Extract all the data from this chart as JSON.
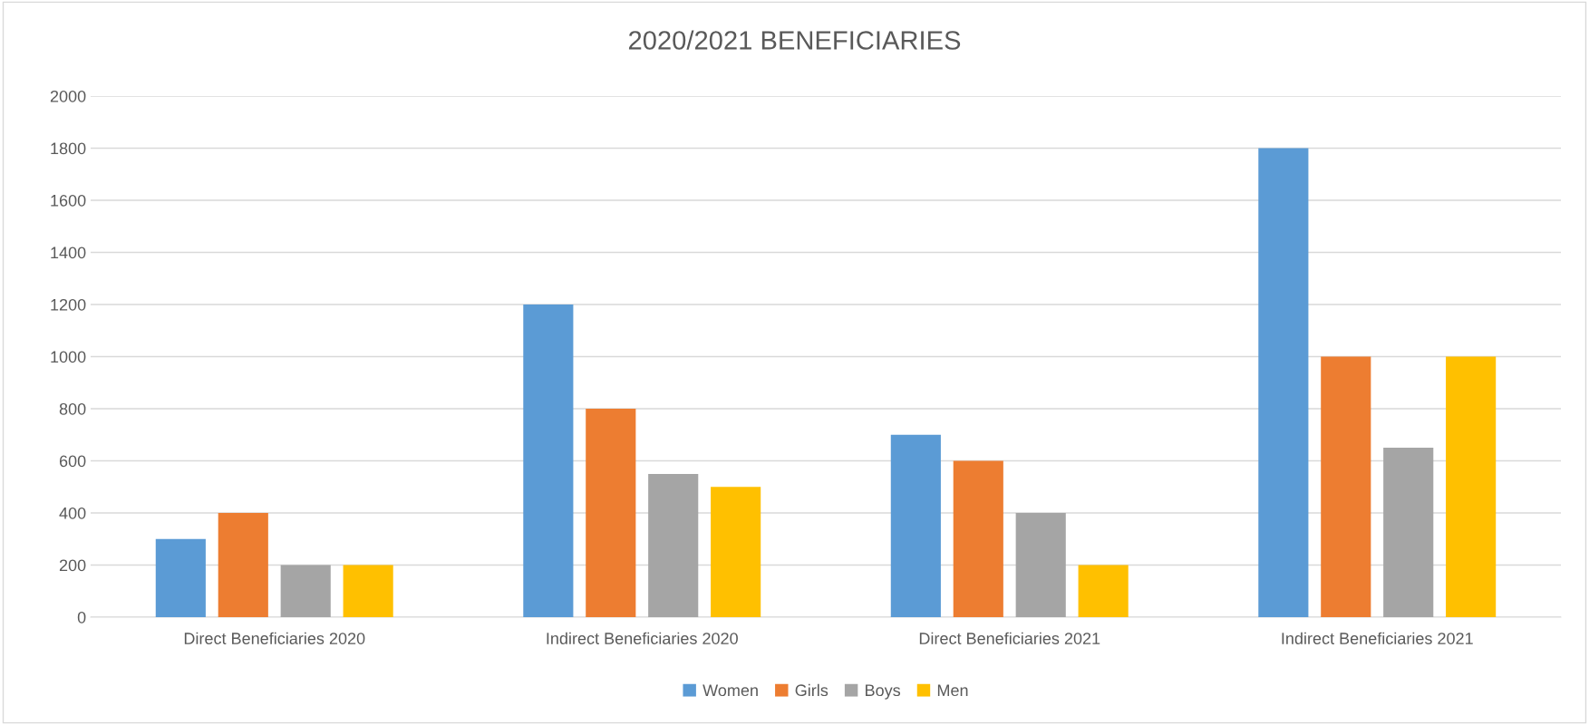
{
  "chart_data": {
    "type": "bar",
    "title": "2020/2021 BENEFICIARIES",
    "categories": [
      "Direct Beneficiaries 2020",
      "Indirect Beneficiaries 2020",
      "Direct Beneficiaries 2021",
      "Indirect Beneficiaries 2021"
    ],
    "series": [
      {
        "name": "Women",
        "color": "#5b9bd5",
        "values": [
          300,
          1200,
          700,
          1800
        ]
      },
      {
        "name": "Girls",
        "color": "#ed7d31",
        "values": [
          400,
          800,
          600,
          1000
        ]
      },
      {
        "name": "Boys",
        "color": "#a5a5a5",
        "values": [
          200,
          550,
          400,
          650
        ]
      },
      {
        "name": "Men",
        "color": "#ffc000",
        "values": [
          200,
          500,
          200,
          1000
        ]
      }
    ],
    "ylim": [
      0,
      2000
    ],
    "yticks": [
      0,
      200,
      400,
      600,
      800,
      1000,
      1200,
      1400,
      1600,
      1800,
      2000
    ],
    "grid": "y",
    "legend": "bottom"
  }
}
